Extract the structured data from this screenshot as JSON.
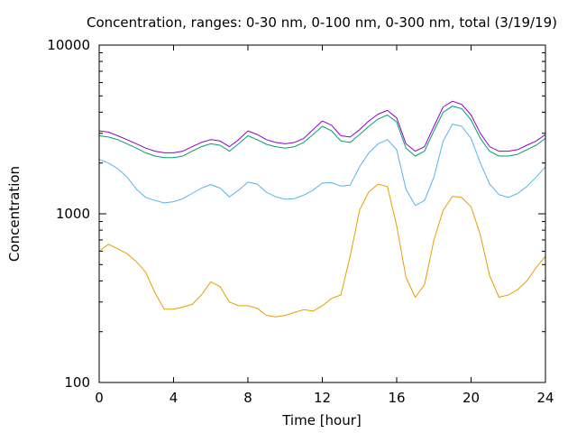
{
  "chart_data": {
    "type": "line",
    "title": "Concentration, ranges: 0-30 nm, 0-100 nm, 0-300 nm, total (3/19/19)",
    "xlabel": "Time [hour]",
    "ylabel": "Concentration",
    "xlim": [
      0,
      24
    ],
    "ylim": [
      100,
      10000
    ],
    "yscale": "log",
    "grid": false,
    "legend": "none",
    "x_ticks": [
      "0",
      "4",
      "8",
      "12",
      "16",
      "20",
      "24"
    ],
    "y_ticks": [
      "100",
      "1000",
      "10000"
    ],
    "x": [
      0,
      0.5,
      1,
      1.5,
      2,
      2.5,
      3,
      3.5,
      4,
      4.5,
      5,
      5.5,
      6,
      6.5,
      7,
      7.5,
      8,
      8.5,
      9,
      9.5,
      10,
      10.5,
      11,
      11.5,
      12,
      12.5,
      13,
      13.5,
      14,
      14.5,
      15,
      15.5,
      16,
      16.5,
      17,
      17.5,
      18,
      18.5,
      19,
      19.5,
      20,
      20.5,
      21,
      21.5,
      22,
      22.5,
      23,
      23.5,
      24
    ],
    "series": [
      {
        "color": "#e69f00",
        "values": [
          600,
          660,
          620,
          580,
          520,
          450,
          340,
          272,
          272,
          280,
          290,
          330,
          395,
          370,
          300,
          285,
          285,
          275,
          250,
          245,
          250,
          260,
          270,
          265,
          285,
          315,
          330,
          560,
          1050,
          1350,
          1500,
          1450,
          850,
          420,
          320,
          380,
          700,
          1050,
          1270,
          1250,
          1100,
          750,
          430,
          320,
          330,
          355,
          400,
          480,
          560
        ]
      },
      {
        "color": "#56b4e9",
        "values": [
          2100,
          2000,
          1850,
          1650,
          1400,
          1250,
          1200,
          1160,
          1180,
          1230,
          1320,
          1420,
          1490,
          1420,
          1260,
          1380,
          1540,
          1500,
          1340,
          1260,
          1220,
          1230,
          1290,
          1380,
          1520,
          1530,
          1460,
          1480,
          1900,
          2300,
          2600,
          2750,
          2400,
          1400,
          1120,
          1200,
          1650,
          2700,
          3400,
          3300,
          2800,
          2000,
          1500,
          1300,
          1250,
          1320,
          1450,
          1650,
          1900
        ]
      },
      {
        "color": "#009e73",
        "values": [
          2900,
          2850,
          2750,
          2600,
          2450,
          2300,
          2200,
          2150,
          2150,
          2200,
          2350,
          2500,
          2600,
          2550,
          2350,
          2600,
          2900,
          2750,
          2580,
          2500,
          2450,
          2500,
          2650,
          2950,
          3300,
          3100,
          2700,
          2650,
          2950,
          3300,
          3650,
          3850,
          3500,
          2450,
          2200,
          2350,
          3100,
          4000,
          4350,
          4200,
          3600,
          2800,
          2350,
          2200,
          2200,
          2250,
          2400,
          2550,
          2800
        ]
      },
      {
        "color": "#9400d3",
        "values": [
          3100,
          3050,
          2900,
          2750,
          2600,
          2450,
          2350,
          2300,
          2300,
          2350,
          2500,
          2650,
          2750,
          2700,
          2500,
          2750,
          3100,
          2950,
          2750,
          2650,
          2600,
          2650,
          2800,
          3150,
          3550,
          3350,
          2900,
          2850,
          3150,
          3550,
          3900,
          4100,
          3700,
          2600,
          2350,
          2500,
          3300,
          4300,
          4650,
          4450,
          3850,
          3000,
          2500,
          2350,
          2350,
          2400,
          2550,
          2700,
          2950
        ]
      }
    ]
  }
}
